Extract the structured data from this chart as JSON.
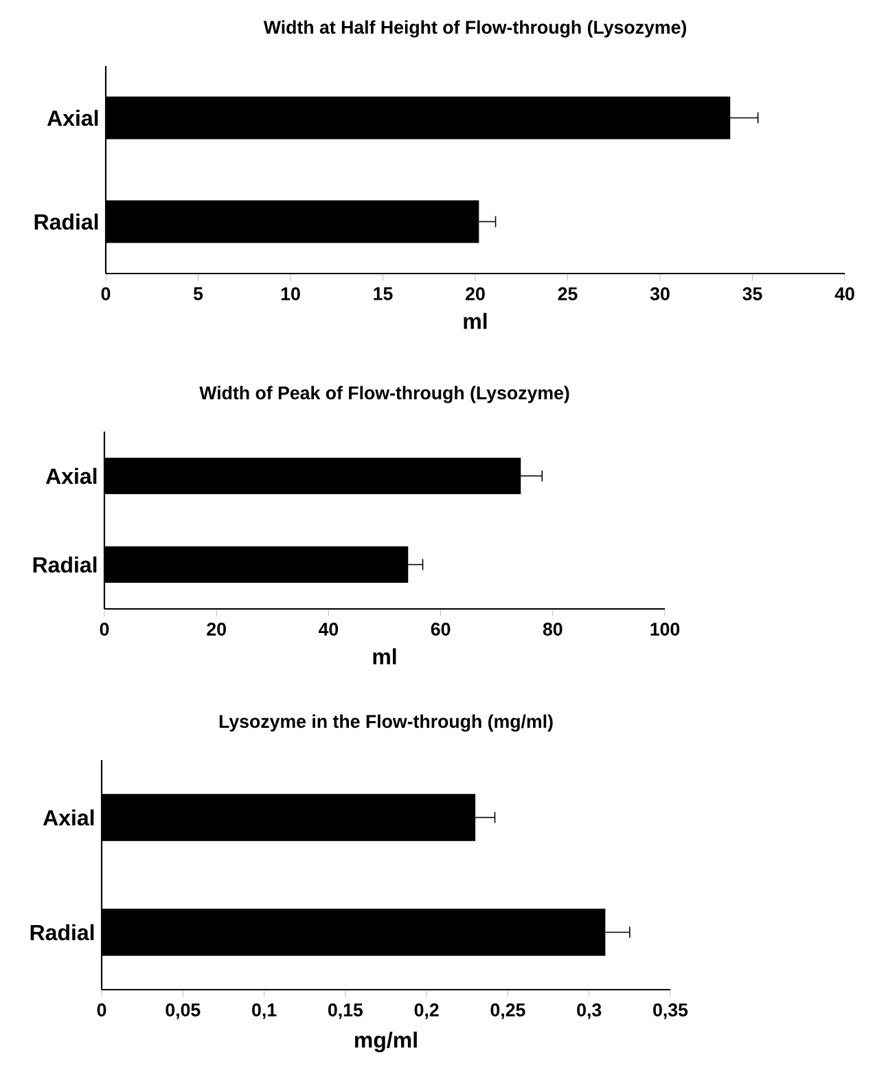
{
  "chart_data": [
    {
      "type": "bar",
      "orientation": "horizontal",
      "title": "Width at Half Height of Flow-through (Lysozyme)",
      "xlabel": "ml",
      "categories": [
        "Axial",
        "Radial"
      ],
      "values": [
        33.8,
        20.2
      ],
      "errors": [
        [
          33.8,
          35.3
        ],
        [
          20.2,
          21.1
        ]
      ],
      "color": "#000000",
      "xlim": [
        0,
        40
      ],
      "xticks": [
        0,
        5,
        10,
        15,
        20,
        25,
        30,
        35,
        40
      ]
    },
    {
      "type": "bar",
      "orientation": "horizontal",
      "title": "Width of Peak of  Flow-through (Lysozyme)",
      "xlabel": "ml",
      "categories": [
        "Axial",
        "Radial"
      ],
      "values": [
        74.3,
        54.2
      ],
      "errors": [
        [
          74.3,
          78.1
        ],
        [
          54.2,
          56.8
        ]
      ],
      "color": "#000000",
      "xlim": [
        0,
        100
      ],
      "xticks": [
        0,
        20,
        40,
        60,
        80,
        100
      ]
    },
    {
      "type": "bar",
      "orientation": "horizontal",
      "title": "Lysozyme in the Flow-through (mg/ml)",
      "xlabel": "mg/ml",
      "categories": [
        "Axial",
        "Radial"
      ],
      "values": [
        0.23,
        0.31
      ],
      "errors": [
        [
          0.23,
          0.242
        ],
        [
          0.31,
          0.325
        ]
      ],
      "color": "#000000",
      "xlim": [
        0,
        0.35
      ],
      "xticks": [
        0,
        {
          "value": 0.05,
          "label": "0,05"
        },
        {
          "value": 0.1,
          "label": "0,1"
        },
        {
          "value": 0.15,
          "label": "0,15"
        },
        {
          "value": 0.2,
          "label": "0,2"
        },
        {
          "value": 0.25,
          "label": "0,25"
        },
        {
          "value": 0.3,
          "label": "0,3"
        },
        {
          "value": 0.35,
          "label": "0,35"
        }
      ]
    }
  ]
}
